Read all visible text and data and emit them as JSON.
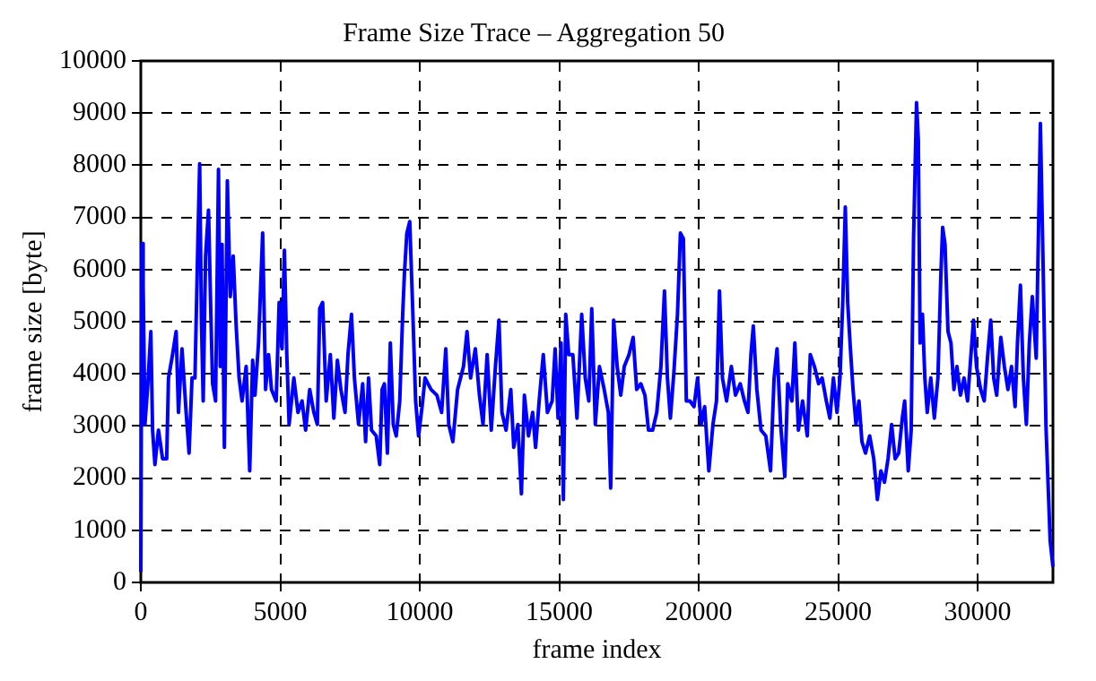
{
  "chart_data": {
    "type": "line",
    "title": "Frame Size Trace – Aggregation 50",
    "xlabel": "frame index",
    "ylabel": "frame size [byte]",
    "xlim": [
      0,
      32700
    ],
    "xticks": [
      0,
      5000,
      10000,
      15000,
      20000,
      25000,
      30000
    ],
    "ylim": [
      0,
      10000
    ],
    "yticks": [
      0,
      1000,
      2000,
      3000,
      4000,
      5000,
      6000,
      7000,
      8000,
      9000,
      10000
    ],
    "grid": true,
    "legend": false,
    "marker": "none",
    "line_style": "solid",
    "series": [
      {
        "color": "#0000ff",
        "x": [
          0,
          40,
          84,
          148,
          253,
          359,
          422,
          506,
          633,
          781,
          928,
          992,
          1139,
          1266,
          1350,
          1477,
          1625,
          1730,
          1836,
          1941,
          2047,
          2110,
          2173,
          2237,
          2321,
          2427,
          2511,
          2574,
          2680,
          2785,
          2849,
          2912,
          2996,
          3102,
          3207,
          3313,
          3418,
          3524,
          3629,
          3777,
          3904,
          4009,
          4093,
          4220,
          4368,
          4473,
          4579,
          4684,
          4853,
          4959,
          5064,
          5148,
          5233,
          5317,
          5486,
          5634,
          5781,
          5908,
          6055,
          6203,
          6329,
          6414,
          6519,
          6646,
          6794,
          6920,
          7047,
          7173,
          7321,
          7427,
          7553,
          7658,
          7806,
          7954,
          8059,
          8165,
          8270,
          8439,
          8565,
          8650,
          8734,
          8840,
          8945,
          9051,
          9156,
          9283,
          9388,
          9451,
          9536,
          9641,
          9747,
          9852,
          9958,
          10084,
          10190,
          10403,
          10615,
          10784,
          10933,
          11039,
          11187,
          11356,
          11568,
          11695,
          11823,
          11992,
          12140,
          12268,
          12416,
          12564,
          12713,
          12840,
          12946,
          13094,
          13264,
          13369,
          13518,
          13645,
          13751,
          13899,
          14047,
          14153,
          14281,
          14429,
          14577,
          14747,
          14853,
          14958,
          15065,
          15149,
          15234,
          15340,
          15488,
          15636,
          15806,
          15933,
          16060,
          16166,
          16294,
          16442,
          16612,
          16760,
          16845,
          16951,
          17078,
          17205,
          17332,
          17502,
          17650,
          17777,
          17925,
          18073,
          18200,
          18349,
          18497,
          18646,
          18773,
          18879,
          18985,
          19112,
          19239,
          19345,
          19451,
          19557,
          19684,
          19833,
          19960,
          20087,
          20214,
          20363,
          20511,
          20638,
          20745,
          20851,
          21000,
          21170,
          21319,
          21490,
          21639,
          21766,
          21873,
          21958,
          22085,
          22234,
          22405,
          22575,
          22703,
          22809,
          22937,
          23086,
          23192,
          23341,
          23447,
          23575,
          23724,
          23894,
          24001,
          24150,
          24299,
          24426,
          24575,
          24703,
          24830,
          24958,
          25065,
          25171,
          25256,
          25341,
          25426,
          25533,
          25639,
          25745,
          25852,
          25980,
          26129,
          26277,
          26405,
          26533,
          26660,
          26788,
          26916,
          27043,
          27171,
          27299,
          27384,
          27512,
          27618,
          27703,
          27810,
          27874,
          27937,
          28023,
          28108,
          28193,
          28321,
          28448,
          28576,
          28683,
          28746,
          28831,
          28938,
          29044,
          29150,
          29257,
          29384,
          29512,
          29640,
          29746,
          29852,
          29959,
          30108,
          30236,
          30363,
          30470,
          30576,
          30683,
          30831,
          30959,
          31087,
          31215,
          31343,
          31428,
          31534,
          31640,
          31747,
          31853,
          31960,
          32100,
          32250,
          32350,
          32450,
          32600,
          32700
        ],
        "values": [
          200,
          6500,
          5700,
          3030,
          3810,
          4810,
          2920,
          2260,
          2920,
          2370,
          2370,
          3920,
          4370,
          4810,
          3260,
          4480,
          3260,
          2480,
          3920,
          3920,
          6590,
          8030,
          5030,
          3480,
          6260,
          7140,
          5140,
          3810,
          3480,
          7920,
          4140,
          6480,
          2590,
          7700,
          5480,
          6260,
          4920,
          3920,
          3480,
          4140,
          2140,
          4260,
          3590,
          4590,
          6700,
          3700,
          4370,
          3700,
          3480,
          5370,
          4480,
          6370,
          4370,
          3030,
          3920,
          3260,
          3480,
          2920,
          3700,
          3260,
          3030,
          5250,
          5370,
          3480,
          4370,
          3150,
          4260,
          3700,
          3260,
          4370,
          5140,
          3920,
          3030,
          3810,
          2700,
          3920,
          2920,
          2810,
          2260,
          3700,
          3810,
          2480,
          4590,
          3030,
          2810,
          3480,
          5140,
          5920,
          6690,
          6920,
          5250,
          3480,
          2810,
          3370,
          3920,
          3700,
          3590,
          3260,
          4480,
          3030,
          2700,
          3700,
          4140,
          4810,
          3920,
          4480,
          3590,
          3030,
          4370,
          2920,
          4140,
          5030,
          3260,
          2920,
          3700,
          2590,
          3030,
          1700,
          3590,
          2810,
          3260,
          2590,
          3480,
          4370,
          3260,
          3480,
          4480,
          3150,
          4590,
          1590,
          5140,
          4370,
          4370,
          3150,
          5140,
          3920,
          3480,
          5250,
          3030,
          4140,
          3700,
          3260,
          1810,
          5030,
          4140,
          3590,
          4140,
          4370,
          4700,
          3700,
          3810,
          3590,
          2920,
          2920,
          3260,
          4140,
          5590,
          3920,
          3150,
          4040,
          5140,
          6700,
          6590,
          3480,
          3480,
          3370,
          3920,
          3030,
          3370,
          2140,
          3030,
          3480,
          5590,
          3920,
          3480,
          4140,
          3590,
          3810,
          3480,
          3260,
          4370,
          4920,
          3700,
          2920,
          2810,
          2140,
          3920,
          4480,
          3030,
          2030,
          3810,
          3480,
          4590,
          2920,
          3480,
          2810,
          4370,
          4140,
          3810,
          3920,
          3480,
          3150,
          3920,
          3260,
          3920,
          5480,
          7200,
          5370,
          4590,
          3700,
          3030,
          3480,
          2700,
          2480,
          2810,
          2370,
          1590,
          2140,
          1920,
          2370,
          3030,
          2370,
          2480,
          3150,
          3480,
          2140,
          2920,
          6590,
          9200,
          8480,
          4590,
          5140,
          3920,
          3260,
          3920,
          3150,
          3920,
          5920,
          6810,
          6480,
          4810,
          4590,
          3700,
          4140,
          3590,
          3920,
          3480,
          4260,
          5030,
          4140,
          3700,
          3480,
          4370,
          5030,
          3920,
          3590,
          4700,
          4140,
          3700,
          4140,
          3370,
          4590,
          5700,
          3920,
          3030,
          4590,
          5480,
          4300,
          8800,
          6000,
          3000,
          800,
          300
        ]
      }
    ]
  }
}
